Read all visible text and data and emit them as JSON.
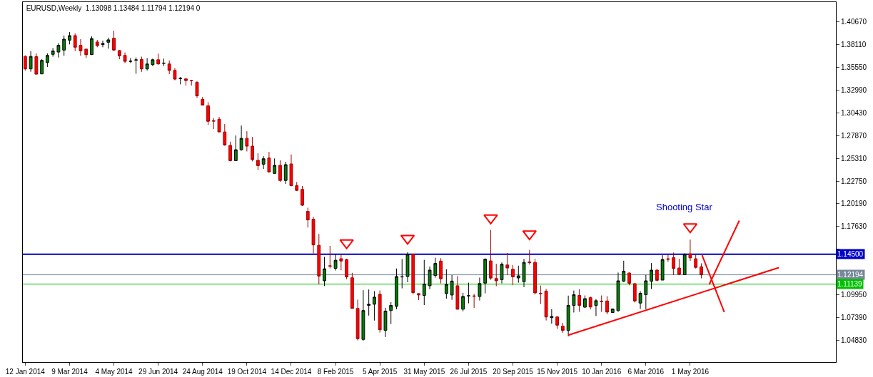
{
  "chart_data": {
    "type": "candlestick",
    "title": "EURUSD,Weekly  1.13098 1.13484 1.11794 1.12194 0",
    "x": [
      "2014-01-12",
      "2014-01-19",
      "2014-01-26",
      "2014-02-02",
      "2014-02-09",
      "2014-02-16",
      "2014-02-23",
      "2014-03-02",
      "2014-03-09",
      "2014-03-16",
      "2014-03-23",
      "2014-03-30",
      "2014-04-06",
      "2014-04-13",
      "2014-04-20",
      "2014-04-27",
      "2014-05-04",
      "2014-05-11",
      "2014-05-18",
      "2014-05-25",
      "2014-06-01",
      "2014-06-08",
      "2014-06-15",
      "2014-06-22",
      "2014-06-29",
      "2014-07-06",
      "2014-07-13",
      "2014-07-20",
      "2014-07-27",
      "2014-08-03",
      "2014-08-10",
      "2014-08-17",
      "2014-08-24",
      "2014-08-31",
      "2014-09-07",
      "2014-09-14",
      "2014-09-21",
      "2014-09-28",
      "2014-10-05",
      "2014-10-12",
      "2014-10-19",
      "2014-10-26",
      "2014-11-02",
      "2014-11-09",
      "2014-11-16",
      "2014-11-23",
      "2014-11-30",
      "2014-12-07",
      "2014-12-14",
      "2014-12-21",
      "2014-12-28",
      "2015-01-04",
      "2015-01-11",
      "2015-01-18",
      "2015-01-25",
      "2015-02-01",
      "2015-02-08",
      "2015-02-15",
      "2015-02-22",
      "2015-03-01",
      "2015-03-08",
      "2015-03-15",
      "2015-03-22",
      "2015-03-29",
      "2015-04-05",
      "2015-04-12",
      "2015-04-19",
      "2015-04-26",
      "2015-05-03",
      "2015-05-10",
      "2015-05-17",
      "2015-05-24",
      "2015-05-31",
      "2015-06-07",
      "2015-06-14",
      "2015-06-21",
      "2015-06-28",
      "2015-07-05",
      "2015-07-12",
      "2015-07-19",
      "2015-07-26",
      "2015-08-02",
      "2015-08-09",
      "2015-08-16",
      "2015-08-23",
      "2015-08-30",
      "2015-09-06",
      "2015-09-13",
      "2015-09-20",
      "2015-09-27",
      "2015-10-04",
      "2015-10-11",
      "2015-10-18",
      "2015-10-25",
      "2015-11-01",
      "2015-11-08",
      "2015-11-15",
      "2015-11-22",
      "2015-11-29",
      "2015-12-06",
      "2015-12-13",
      "2015-12-20",
      "2015-12-27",
      "2016-01-03",
      "2016-01-10",
      "2016-01-17",
      "2016-01-24",
      "2016-01-31",
      "2016-02-07",
      "2016-02-14",
      "2016-02-21",
      "2016-02-28",
      "2016-03-06",
      "2016-03-13",
      "2016-03-20",
      "2016-03-27",
      "2016-04-03",
      "2016-04-10",
      "2016-04-17",
      "2016-04-24",
      "2016-05-01",
      "2016-05-08",
      "2016-05-15"
    ],
    "ohlc": [
      [
        1.3679,
        1.369,
        1.352,
        1.3538
      ],
      [
        1.3538,
        1.374,
        1.3506,
        1.3679
      ],
      [
        1.3676,
        1.3713,
        1.3476,
        1.3479
      ],
      [
        1.3482,
        1.3647,
        1.3478,
        1.3634
      ],
      [
        1.361,
        1.3713,
        1.356,
        1.369
      ],
      [
        1.3702,
        1.3772,
        1.3676,
        1.374
      ],
      [
        1.3728,
        1.3828,
        1.3666,
        1.3804
      ],
      [
        1.375,
        1.3914,
        1.3686,
        1.3873
      ],
      [
        1.3862,
        1.3954,
        1.3814,
        1.3913
      ],
      [
        1.3913,
        1.3938,
        1.3739,
        1.3782
      ],
      [
        1.3804,
        1.3873,
        1.3686,
        1.3742
      ],
      [
        1.3761,
        1.3765,
        1.366,
        1.3698
      ],
      [
        1.37,
        1.3905,
        1.3694,
        1.388
      ],
      [
        1.3841,
        1.3865,
        1.3782,
        1.3801
      ],
      [
        1.3812,
        1.3857,
        1.3782,
        1.3825
      ],
      [
        1.3838,
        1.389,
        1.3766,
        1.3865
      ],
      [
        1.3884,
        1.3969,
        1.374,
        1.375
      ],
      [
        1.3745,
        1.375,
        1.3647,
        1.3686
      ],
      [
        1.369,
        1.3723,
        1.3604,
        1.3623
      ],
      [
        1.3623,
        1.366,
        1.3604,
        1.3625
      ],
      [
        1.3637,
        1.3667,
        1.3483,
        1.364
      ],
      [
        1.3644,
        1.3676,
        1.3505,
        1.3538
      ],
      [
        1.3538,
        1.366,
        1.3521,
        1.3594
      ],
      [
        1.3586,
        1.3654,
        1.357,
        1.3641
      ],
      [
        1.3641,
        1.371,
        1.3586,
        1.3594
      ],
      [
        1.36,
        1.3654,
        1.357,
        1.3604
      ],
      [
        1.3594,
        1.3633,
        1.3478,
        1.3522
      ],
      [
        1.3522,
        1.3548,
        1.341,
        1.3423
      ],
      [
        1.343,
        1.3447,
        1.3364,
        1.3432
      ],
      [
        1.3426,
        1.3427,
        1.3351,
        1.3407
      ],
      [
        1.3407,
        1.3415,
        1.3351,
        1.3404
      ],
      [
        1.3386,
        1.3402,
        1.3212,
        1.3235
      ],
      [
        1.3195,
        1.3222,
        1.3131,
        1.3131
      ],
      [
        1.3123,
        1.3163,
        1.2906,
        1.2948
      ],
      [
        1.2955,
        1.2982,
        1.286,
        1.295
      ],
      [
        1.2971,
        1.2997,
        1.2828,
        1.2828
      ],
      [
        1.2828,
        1.2917,
        1.2673,
        1.2681
      ],
      [
        1.2676,
        1.2719,
        1.2497,
        1.2505
      ],
      [
        1.2505,
        1.2788,
        1.2505,
        1.2628
      ],
      [
        1.2628,
        1.29,
        1.2617,
        1.2756
      ],
      [
        1.2756,
        1.2836,
        1.2609,
        1.2668
      ],
      [
        1.2668,
        1.2772,
        1.2497,
        1.2517
      ],
      [
        1.2509,
        1.2588,
        1.2398,
        1.2449
      ],
      [
        1.2465,
        1.2555,
        1.2412,
        1.2526
      ],
      [
        1.2535,
        1.2604,
        1.237,
        1.2378
      ],
      [
        1.2361,
        1.253,
        1.2361,
        1.2452
      ],
      [
        1.2452,
        1.2508,
        1.2266,
        1.2282
      ],
      [
        1.2282,
        1.2492,
        1.2242,
        1.246
      ],
      [
        1.2468,
        1.2575,
        1.2217,
        1.2223
      ],
      [
        1.2223,
        1.2264,
        1.2162,
        1.217
      ],
      [
        1.2181,
        1.222,
        1.1995,
        1.2003
      ],
      [
        1.1934,
        1.1975,
        1.1752,
        1.1838
      ],
      [
        1.1846,
        1.1871,
        1.146,
        1.1556
      ],
      [
        1.1551,
        1.1679,
        1.1111,
        1.1205
      ],
      [
        1.1152,
        1.1421,
        1.1093,
        1.1287
      ],
      [
        1.1322,
        1.1546,
        1.1292,
        1.1316
      ],
      [
        1.1292,
        1.1449,
        1.1268,
        1.1383
      ],
      [
        1.1401,
        1.1452,
        1.1271,
        1.1375
      ],
      [
        1.1391,
        1.1401,
        1.117,
        1.1196
      ],
      [
        1.1186,
        1.1242,
        1.084,
        1.084
      ],
      [
        1.084,
        1.094,
        1.0481,
        1.05
      ],
      [
        1.0492,
        1.1046,
        1.0478,
        1.0817
      ],
      [
        1.0875,
        1.1054,
        1.076,
        1.0888
      ],
      [
        1.0888,
        1.1035,
        1.0704,
        1.0968
      ],
      [
        1.1,
        1.1043,
        1.0569,
        1.0601
      ],
      [
        1.0593,
        1.0848,
        1.0519,
        1.0811
      ],
      [
        1.0817,
        1.0911,
        1.0664,
        1.0875
      ],
      [
        1.0864,
        1.129,
        1.0832,
        1.12
      ],
      [
        1.1195,
        1.1397,
        1.1067,
        1.1197
      ],
      [
        1.12,
        1.1474,
        1.1136,
        1.145
      ],
      [
        1.145,
        1.1455,
        1.1,
        1.1019
      ],
      [
        1.1008,
        1.101,
        1.0934,
        1.0992
      ],
      [
        1.0987,
        1.1388,
        1.0879,
        1.1115
      ],
      [
        1.1096,
        1.1312,
        1.1056,
        1.1272
      ],
      [
        1.1211,
        1.1412,
        1.1187,
        1.1348
      ],
      [
        1.1374,
        1.1406,
        1.1123,
        1.1175
      ],
      [
        1.1008,
        1.1282,
        1.095,
        1.1112
      ],
      [
        1.0992,
        1.1216,
        1.0938,
        1.1149
      ],
      [
        1.1096,
        1.1205,
        1.0829,
        1.0832
      ],
      [
        1.0832,
        1.1017,
        1.0808,
        1.0976
      ],
      [
        1.0982,
        1.1131,
        1.0898,
        1.0984
      ],
      [
        1.0982,
        1.1005,
        1.0845,
        1.0978
      ],
      [
        1.0975,
        1.1188,
        1.093,
        1.1121
      ],
      [
        1.1126,
        1.1404,
        1.1011,
        1.1395
      ],
      [
        1.1376,
        1.1724,
        1.1163,
        1.1183
      ],
      [
        1.1178,
        1.1344,
        1.1091,
        1.1152
      ],
      [
        1.1165,
        1.1359,
        1.1123,
        1.1338
      ],
      [
        1.133,
        1.1466,
        1.1216,
        1.1296
      ],
      [
        1.1282,
        1.133,
        1.1102,
        1.1197
      ],
      [
        1.1184,
        1.1322,
        1.1131,
        1.1208
      ],
      [
        1.1142,
        1.1399,
        1.108,
        1.1359
      ],
      [
        1.1364,
        1.15,
        1.1334,
        1.1356
      ],
      [
        1.1359,
        1.1399,
        1.0998,
        1.1016
      ],
      [
        1.101,
        1.1099,
        1.0891,
        1.1007
      ],
      [
        1.1035,
        1.1059,
        1.0705,
        1.0745
      ],
      [
        1.0737,
        1.0833,
        1.0668,
        1.075
      ],
      [
        1.0745,
        1.0753,
        1.061,
        1.0652
      ],
      [
        1.0641,
        1.0678,
        1.0566,
        1.0593
      ],
      [
        1.0593,
        1.0985,
        1.0526,
        1.0875
      ],
      [
        1.0875,
        1.1043,
        1.0795,
        1.0995
      ],
      [
        1.0987,
        1.1057,
        1.0803,
        1.0875
      ],
      [
        1.0855,
        1.0987,
        1.0846,
        1.0951
      ],
      [
        1.0962,
        1.0975,
        1.083,
        1.0857
      ],
      [
        1.0875,
        1.0947,
        1.0755,
        1.0928
      ],
      [
        1.0922,
        1.0987,
        1.0802,
        1.0918
      ],
      [
        1.0925,
        1.0979,
        1.0775,
        1.08
      ],
      [
        1.0794,
        1.084,
        1.079,
        1.0834
      ],
      [
        1.0816,
        1.1245,
        1.0803,
        1.1152
      ],
      [
        1.1147,
        1.1378,
        1.1139,
        1.1259
      ],
      [
        1.124,
        1.1245,
        1.1101,
        1.1125
      ],
      [
        1.112,
        1.1125,
        1.0907,
        1.0925
      ],
      [
        1.0901,
        1.1035,
        1.0835,
        1.1011
      ],
      [
        1.0995,
        1.1219,
        1.0832,
        1.1152
      ],
      [
        1.1147,
        1.1352,
        1.1059,
        1.1272
      ],
      [
        1.1272,
        1.1285,
        1.1147,
        1.1157
      ],
      [
        1.116,
        1.144,
        1.116,
        1.1392
      ],
      [
        1.14,
        1.145,
        1.1365,
        1.1394
      ],
      [
        1.1412,
        1.147,
        1.1216,
        1.129
      ],
      [
        1.1296,
        1.14,
        1.1216,
        1.1224
      ],
      [
        1.1221,
        1.1461,
        1.1221,
        1.145
      ],
      [
        1.1455,
        1.1616,
        1.1376,
        1.141
      ],
      [
        1.14,
        1.145,
        1.129,
        1.1303
      ],
      [
        1.13098,
        1.13484,
        1.11794,
        1.12194
      ]
    ],
    "series": [
      {
        "type": "line",
        "color": "#ff0000",
        "x": [
          "2015-11-29",
          "2016-08-21"
        ],
        "values": [
          1.054,
          1.13
        ]
      },
      {
        "type": "line",
        "color": "#ff0000",
        "x": [
          "2016-05-16",
          "2016-06-13"
        ],
        "values": [
          1.144,
          1.08
        ]
      },
      {
        "type": "line",
        "color": "#ff0000",
        "x": [
          "2016-05-25",
          "2016-07-02"
        ],
        "values": [
          1.111,
          1.183
        ]
      },
      {
        "type": "scatter",
        "color": "#ff0000",
        "marker": "triangle",
        "x": [
          "2015-02-22",
          "2015-05-10",
          "2015-08-23",
          "2015-10-11",
          "2016-05-01"
        ],
        "values": [
          1.158,
          1.163,
          1.186,
          1.168,
          1.176
        ]
      }
    ],
    "annotations": [
      "Shooting Star"
    ],
    "ref_lines": [
      {
        "axis": "y",
        "value": 1.145,
        "label": "1.14500",
        "color": "#0000c8"
      },
      {
        "axis": "y",
        "value": 1.12194,
        "label": "1.12194",
        "color": "#778899"
      },
      {
        "axis": "y",
        "value": 1.11139,
        "label": "1.11139",
        "color": "#00c000"
      }
    ],
    "xlim": [
      "2014-01-09",
      "2016-11-01"
    ],
    "xticks": [
      {
        "value": "2014-01-12",
        "label": "12 Jan 2014"
      },
      {
        "value": "2014-03-09",
        "label": "9 Mar 2014"
      },
      {
        "value": "2014-05-04",
        "label": "4 May 2014"
      },
      {
        "value": "2014-06-29",
        "label": "29 Jun 2014"
      },
      {
        "value": "2014-08-24",
        "label": "24 Aug 2014"
      },
      {
        "value": "2014-10-19",
        "label": "19 Oct 2014"
      },
      {
        "value": "2014-12-14",
        "label": "14 Dec 2014"
      },
      {
        "value": "2015-02-08",
        "label": "8 Feb 2015"
      },
      {
        "value": "2015-04-05",
        "label": "5 Apr 2015"
      },
      {
        "value": "2015-05-31",
        "label": "31 May 2015"
      },
      {
        "value": "2015-07-26",
        "label": "26 Jul 2015"
      },
      {
        "value": "2015-09-20",
        "label": "20 Sep 2015"
      },
      {
        "value": "2015-11-15",
        "label": "15 Nov 2015"
      },
      {
        "value": "2016-01-10",
        "label": "10 Jan 2016"
      },
      {
        "value": "2016-03-06",
        "label": "6 Mar 2016"
      },
      {
        "value": "2016-05-01",
        "label": "1 May 2016"
      }
    ],
    "ylim": [
      1.0237,
      1.429
    ],
    "yticks": [
      {
        "value": 1.4067,
        "label": "1.40670"
      },
      {
        "value": 1.3811,
        "label": "1.38110"
      },
      {
        "value": 1.3555,
        "label": "1.35550"
      },
      {
        "value": 1.3299,
        "label": "1.32990"
      },
      {
        "value": 1.3043,
        "label": "1.30430"
      },
      {
        "value": 1.2787,
        "label": "1.27870"
      },
      {
        "value": 1.2531,
        "label": "1.25310"
      },
      {
        "value": 1.2275,
        "label": "1.22750"
      },
      {
        "value": 1.2019,
        "label": "1.20190"
      },
      {
        "value": 1.1763,
        "label": "1.17630"
      },
      {
        "value": 1.1507,
        "label": null
      },
      {
        "value": 1.1251,
        "label": null
      },
      {
        "value": 1.0995,
        "label": "1.09950"
      },
      {
        "value": 1.0739,
        "label": "1.07390"
      },
      {
        "value": 1.0483,
        "label": "1.04830"
      }
    ],
    "grid": false
  }
}
